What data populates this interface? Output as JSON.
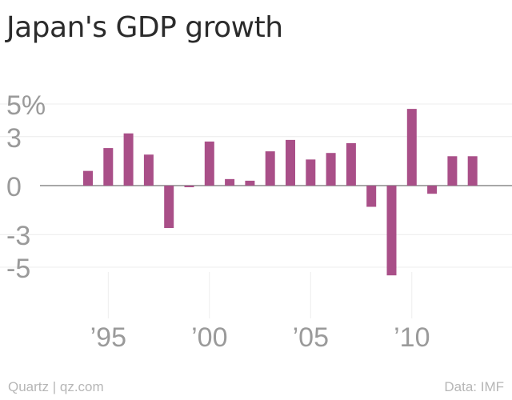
{
  "chart_data": {
    "type": "bar",
    "title": "Japan's GDP growth",
    "xlabel": "",
    "ylabel": "",
    "ylim": [
      -6.5,
      6.5
    ],
    "y_ticks": [
      {
        "value": 5,
        "label": "5%"
      },
      {
        "value": 3,
        "label": "3"
      },
      {
        "value": 0,
        "label": "0"
      },
      {
        "value": -3,
        "label": "-3"
      },
      {
        "value": -5,
        "label": "-5"
      }
    ],
    "x_ticks": [
      {
        "year": 1995,
        "label": "’95"
      },
      {
        "year": 2000,
        "label": "’00"
      },
      {
        "year": 2005,
        "label": "’05"
      },
      {
        "year": 2010,
        "label": "’10"
      }
    ],
    "x": [
      1994,
      1995,
      1996,
      1997,
      1998,
      1999,
      2000,
      2001,
      2002,
      2003,
      2004,
      2005,
      2006,
      2007,
      2008,
      2009,
      2010,
      2011,
      2012,
      2013
    ],
    "values": [
      0.9,
      2.3,
      3.2,
      1.9,
      -2.6,
      -0.1,
      2.7,
      0.4,
      0.3,
      2.1,
      2.8,
      1.6,
      2.0,
      2.6,
      -1.3,
      -5.5,
      4.7,
      -0.5,
      1.8,
      1.8
    ],
    "bar_color": "#a94f88",
    "grid": true,
    "legend": "none"
  },
  "footer": {
    "source_left": "Quartz | qz.com",
    "source_right": "Data: IMF"
  }
}
